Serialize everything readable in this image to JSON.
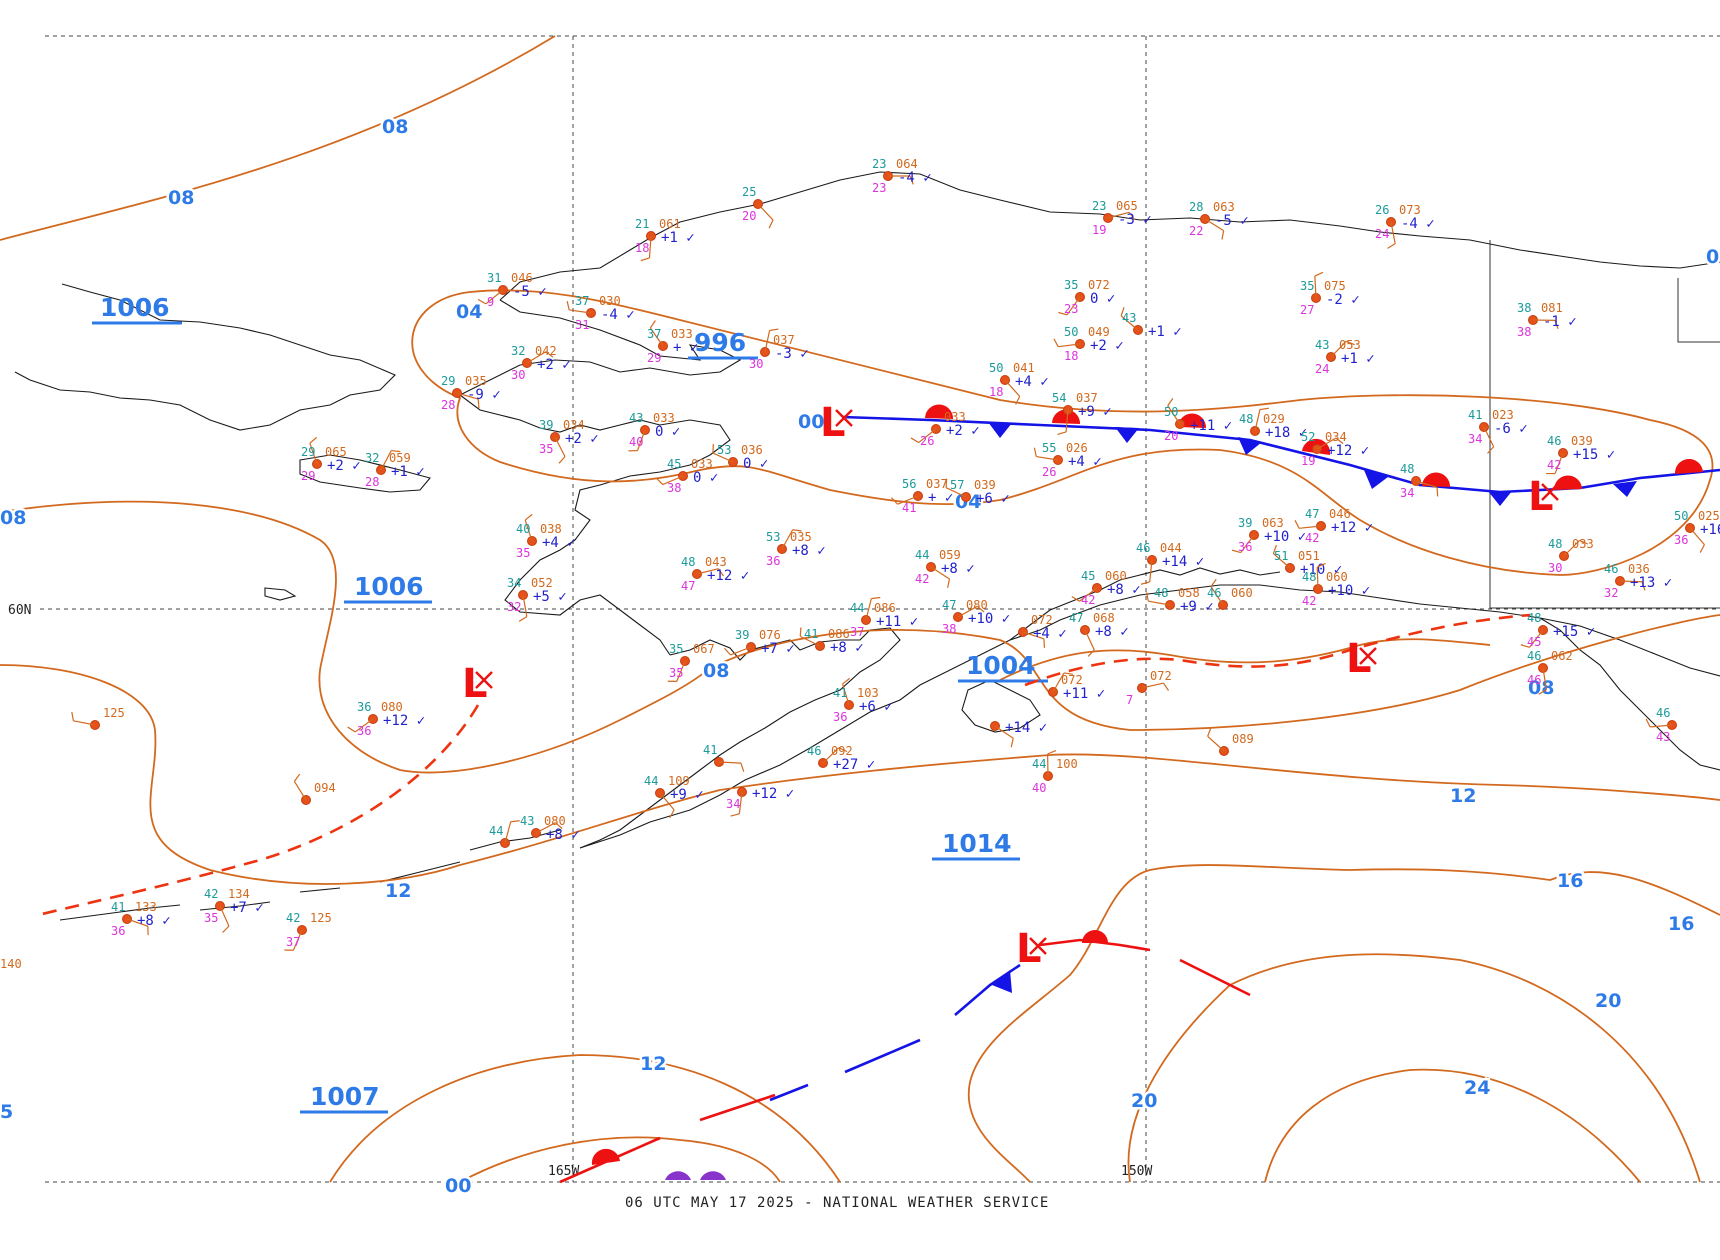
{
  "map": {
    "footer": "06 UTC MAY 17 2025 - NATIONAL WEATHER SERVICE",
    "grid_labels": {
      "lat_60": "60N",
      "lon_165": "165W",
      "lon_150": "150W"
    },
    "isobar_labels": [
      "08",
      "08",
      "04",
      "08",
      "08",
      "12",
      "12",
      "16",
      "16",
      "20",
      "20",
      "24",
      "04",
      "12",
      "08",
      "00",
      "0",
      "5",
      "4",
      "140",
      "00"
    ],
    "pressure_centers": [
      {
        "label": "1006"
      },
      {
        "label": "996"
      },
      {
        "label": "1006"
      },
      {
        "label": "1004"
      },
      {
        "label": "1014"
      },
      {
        "label": "1007"
      }
    ],
    "lows": [
      {
        "letter": "L"
      },
      {
        "letter": "L"
      },
      {
        "letter": "L"
      },
      {
        "letter": "L"
      },
      {
        "letter": "L"
      }
    ],
    "stations": [
      {
        "t": "23",
        "p": "064",
        "d": "23",
        "tend": "-4"
      },
      {
        "t": "25",
        "p": "",
        "d": "20",
        "tend": ""
      },
      {
        "t": "21",
        "p": "061",
        "d": "18",
        "tend": "+1"
      },
      {
        "t": "31",
        "p": "046",
        "d": "9",
        "tend": "-5"
      },
      {
        "t": "37",
        "p": "030",
        "d": "31",
        "tend": "-4"
      },
      {
        "t": "37",
        "p": "033",
        "d": "29",
        "tend": "+"
      },
      {
        "t": "",
        "p": "037",
        "d": "30",
        "tend": "-3"
      },
      {
        "t": "32",
        "p": "042",
        "d": "30",
        "tend": "+2"
      },
      {
        "t": "29",
        "p": "035",
        "d": "28",
        "tend": "-9"
      },
      {
        "t": "39",
        "p": "034",
        "d": "35",
        "tend": "+2"
      },
      {
        "t": "43",
        "p": "033",
        "d": "40",
        "tend": "0"
      },
      {
        "t": "45",
        "p": "033",
        "d": "38",
        "tend": "0"
      },
      {
        "t": "53",
        "p": "036",
        "d": "",
        "tend": "0"
      },
      {
        "t": "29",
        "p": "065",
        "d": "29",
        "tend": "+2"
      },
      {
        "t": "32",
        "p": "059",
        "d": "28",
        "tend": "+1"
      },
      {
        "t": "23",
        "p": "065",
        "d": "19",
        "tend": "-3"
      },
      {
        "t": "28",
        "p": "063",
        "d": "22",
        "tend": "-5"
      },
      {
        "t": "26",
        "p": "073",
        "d": "24",
        "tend": "-4"
      },
      {
        "t": "35",
        "p": "072",
        "d": "23",
        "tend": "0"
      },
      {
        "t": "50",
        "p": "049",
        "d": "18",
        "tend": "+2"
      },
      {
        "t": "43",
        "p": "",
        "d": "",
        "tend": "+1"
      },
      {
        "t": "35",
        "p": "075",
        "d": "27",
        "tend": "-2"
      },
      {
        "t": "43",
        "p": "053",
        "d": "24",
        "tend": "+1"
      },
      {
        "t": "38",
        "p": "081",
        "d": "38",
        "tend": "-1"
      },
      {
        "t": "50",
        "p": "041",
        "d": "18",
        "tend": "+4"
      },
      {
        "t": "54",
        "p": "037",
        "d": "",
        "tend": "+9"
      },
      {
        "t": "",
        "p": "033",
        "d": "26",
        "tend": "+2"
      },
      {
        "t": "55",
        "p": "026",
        "d": "26",
        "tend": "+4"
      },
      {
        "t": "50",
        "p": "",
        "d": "20",
        "tend": "+11"
      },
      {
        "t": "48",
        "p": "029",
        "d": "",
        "tend": "+18"
      },
      {
        "t": "52",
        "p": "034",
        "d": "19",
        "tend": "+12"
      },
      {
        "t": "48",
        "p": "",
        "d": "34",
        "tend": ""
      },
      {
        "t": "41",
        "p": "023",
        "d": "34",
        "tend": "-6"
      },
      {
        "t": "46",
        "p": "039",
        "d": "42",
        "tend": "+15"
      },
      {
        "t": "56",
        "p": "037",
        "d": "41",
        "tend": "+"
      },
      {
        "t": "57",
        "p": "039",
        "d": "",
        "tend": "+6"
      },
      {
        "t": "40",
        "p": "038",
        "d": "35",
        "tend": "+4"
      },
      {
        "t": "53",
        "p": "035",
        "d": "36",
        "tend": "+8"
      },
      {
        "t": "48",
        "p": "043",
        "d": "47",
        "tend": "+12"
      },
      {
        "t": "44",
        "p": "059",
        "d": "42",
        "tend": "+8"
      },
      {
        "t": "34",
        "p": "052",
        "d": "32",
        "tend": "+5"
      },
      {
        "t": "39",
        "p": "063",
        "d": "36",
        "tend": "+10"
      },
      {
        "t": "47",
        "p": "046",
        "d": "42",
        "tend": "+12"
      },
      {
        "t": "51",
        "p": "051",
        "d": "",
        "tend": "+10"
      },
      {
        "t": "48",
        "p": "060",
        "d": "42",
        "tend": "+10"
      },
      {
        "t": "48",
        "p": "033",
        "d": "30",
        "tend": ""
      },
      {
        "t": "46",
        "p": "036",
        "d": "32",
        "tend": "+13"
      },
      {
        "t": "50",
        "p": "025",
        "d": "36",
        "tend": "+16"
      },
      {
        "t": "46",
        "p": "044",
        "d": "",
        "tend": "+14"
      },
      {
        "t": "45",
        "p": "060",
        "d": "42",
        "tend": "+8"
      },
      {
        "t": "48",
        "p": "058",
        "d": "",
        "tend": "+9"
      },
      {
        "t": "46",
        "p": "060",
        "d": "",
        "tend": ""
      },
      {
        "t": "44",
        "p": "086",
        "d": "37",
        "tend": "+11"
      },
      {
        "t": "47",
        "p": "080",
        "d": "38",
        "tend": "+10"
      },
      {
        "t": "",
        "p": "072",
        "d": "",
        "tend": "+4"
      },
      {
        "t": "47",
        "p": "068",
        "d": "",
        "tend": "+8"
      },
      {
        "t": "35",
        "p": "067",
        "d": "35",
        "tend": ""
      },
      {
        "t": "39",
        "p": "076",
        "d": "",
        "tend": "+7"
      },
      {
        "t": "41",
        "p": "086",
        "d": "",
        "tend": "+8"
      },
      {
        "t": "41",
        "p": "103",
        "d": "36",
        "tend": "+6"
      },
      {
        "t": "",
        "p": "072",
        "d": "",
        "tend": "+11"
      },
      {
        "t": "",
        "p": "072",
        "d": "7",
        "tend": ""
      },
      {
        "t": "",
        "p": "",
        "d": "",
        "tend": "+14"
      },
      {
        "t": "46",
        "p": "062",
        "d": "46",
        "tend": ""
      },
      {
        "t": "48",
        "p": "",
        "d": "45",
        "tend": "+15"
      },
      {
        "t": "46",
        "p": "",
        "d": "43",
        "tend": ""
      },
      {
        "t": "",
        "p": "089",
        "d": "",
        "tend": ""
      },
      {
        "t": "44",
        "p": "100",
        "d": "40",
        "tend": ""
      },
      {
        "t": "46",
        "p": "092",
        "d": "",
        "tend": "+27"
      },
      {
        "t": "41",
        "p": "",
        "d": "",
        "tend": ""
      },
      {
        "t": "44",
        "p": "109",
        "d": "",
        "tend": "+9"
      },
      {
        "t": "",
        "p": "",
        "d": "34",
        "tend": "+12"
      },
      {
        "t": "36",
        "p": "080",
        "d": "36",
        "tend": "+12"
      },
      {
        "t": "",
        "p": "125",
        "d": "",
        "tend": ""
      },
      {
        "t": "",
        "p": "094",
        "d": "",
        "tend": ""
      },
      {
        "t": "44",
        "p": "",
        "d": "",
        "tend": ""
      },
      {
        "t": "43",
        "p": "080",
        "d": "",
        "tend": "+8"
      },
      {
        "t": "41",
        "p": "133",
        "d": "36",
        "tend": "+8"
      },
      {
        "t": "42",
        "p": "134",
        "d": "35",
        "tend": "+7"
      },
      {
        "t": "42",
        "p": "125",
        "d": "37",
        "tend": ""
      }
    ]
  }
}
